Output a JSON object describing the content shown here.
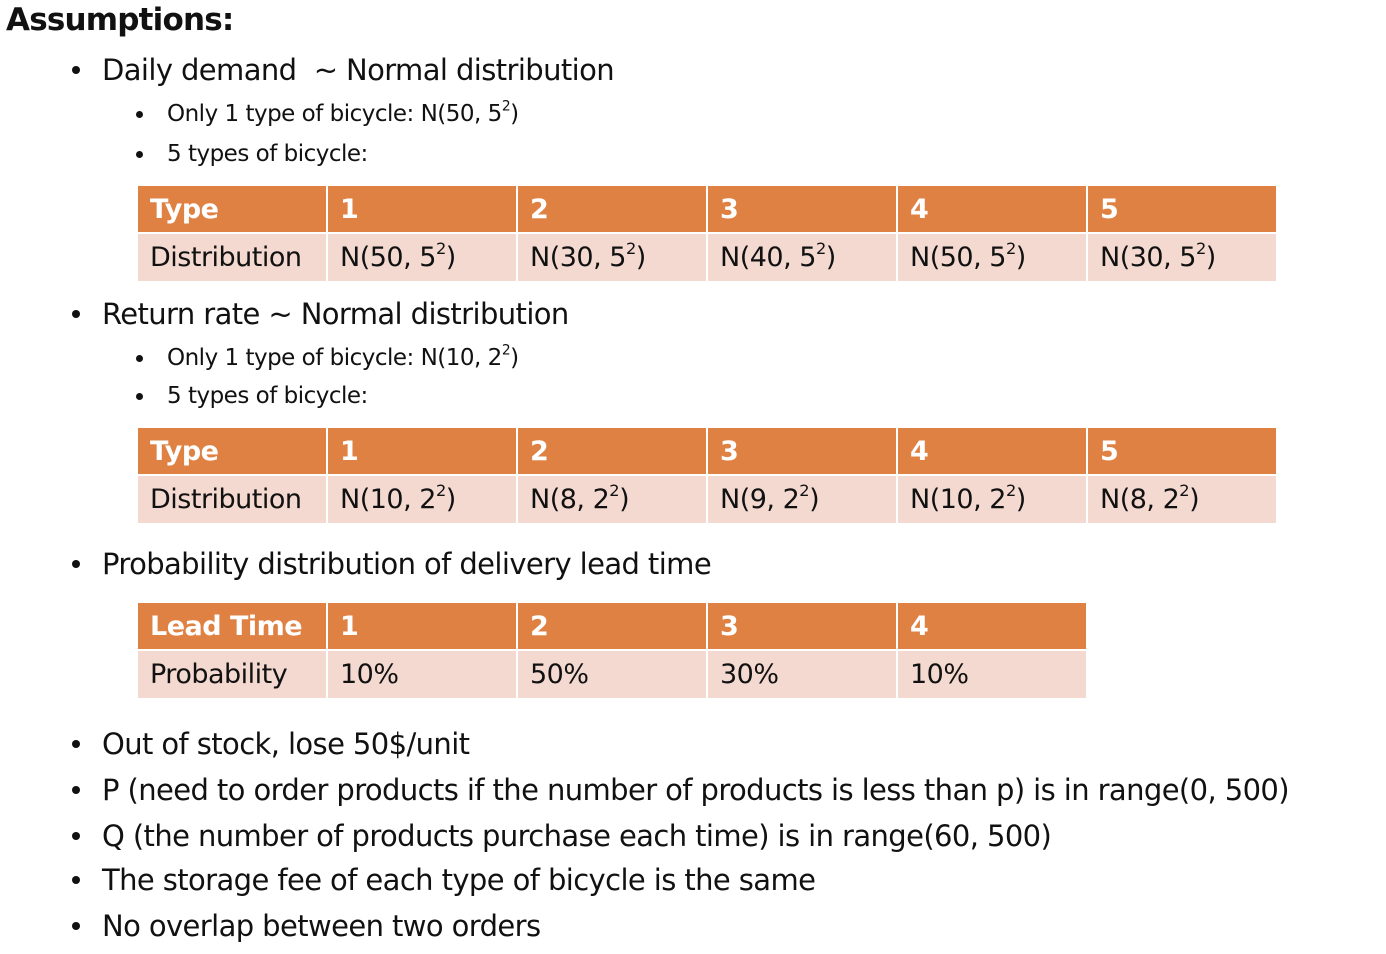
{
  "heading": "Assumptions:",
  "demand": {
    "bullet": "Daily demand  ~ Normal distribution",
    "single": "Only 1 type of bicycle: N(50, 5²)",
    "multi": "5 types of bicycle:",
    "table": {
      "header": [
        "Type",
        "1",
        "2",
        "3",
        "4",
        "5"
      ],
      "row": [
        "Distribution",
        "N(50, 5²)",
        "N(30, 5²)",
        "N(40, 5²)",
        "N(50, 5²)",
        "N(30, 5²)"
      ]
    }
  },
  "return_rate": {
    "bullet": "Return rate ~ Normal distribution",
    "single": "Only 1 type of bicycle: N(10, 2²)",
    "multi": "5 types of bicycle:",
    "table": {
      "header": [
        "Type",
        "1",
        "2",
        "3",
        "4",
        "5"
      ],
      "row": [
        "Distribution",
        "N(10, 2²)",
        "N(8, 2²)",
        "N(9, 2²)",
        "N(10, 2²)",
        "N(8, 2²)"
      ]
    }
  },
  "lead_time": {
    "bullet": "Probability distribution of delivery lead time",
    "table": {
      "header": [
        "Lead Time",
        "1",
        "2",
        "3",
        "4"
      ],
      "row": [
        "Probability",
        "10%",
        "50%",
        "30%",
        "10%"
      ]
    }
  },
  "other_bullets": [
    "Out of stock, lose 50$/unit",
    "P (need to order products if the number of products is less than p) is in range(0, 500)",
    "Q (the number of products purchase each time) is in range(60, 500)",
    "The storage fee of each type of bicycle is the same",
    "No overlap between two orders"
  ],
  "colors": {
    "header_fill": "#e08144",
    "body_fill": "#f3d9d0",
    "header_text": "#ffffff"
  }
}
